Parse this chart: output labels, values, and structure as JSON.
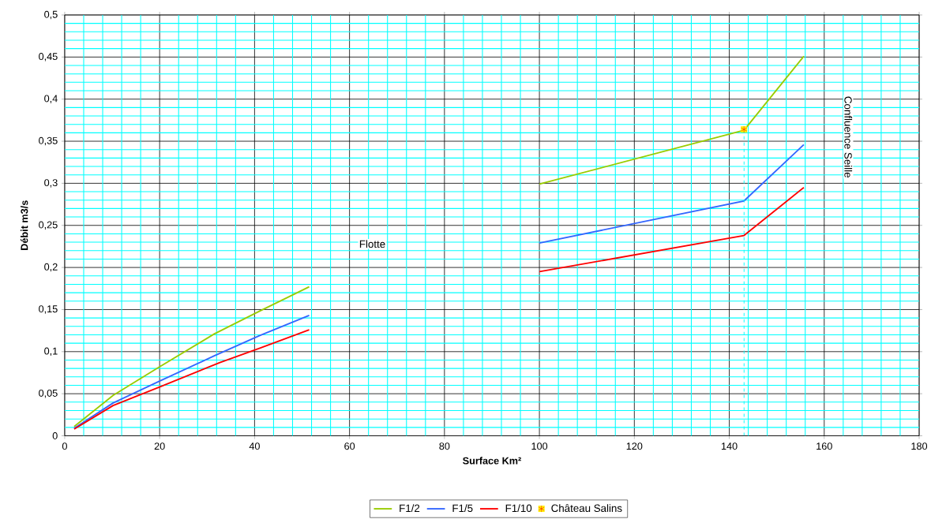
{
  "chart_data": {
    "type": "line",
    "xlabel": "Surface Km²",
    "ylabel": "Débit m3/s",
    "xlim": [
      0,
      180
    ],
    "ylim": [
      0,
      0.5
    ],
    "xticks": [
      0,
      {
        "value": 4,
        "label": null
      },
      {
        "value": 8,
        "label": null
      },
      {
        "value": 12,
        "label": null
      },
      {
        "value": 16,
        "label": null
      },
      20,
      {
        "value": 24,
        "label": null
      },
      {
        "value": 28,
        "label": null
      },
      {
        "value": 32,
        "label": null
      },
      {
        "value": 36,
        "label": null
      },
      40,
      {
        "value": 44,
        "label": null
      },
      {
        "value": 48,
        "label": null
      },
      {
        "value": 52,
        "label": null
      },
      {
        "value": 56,
        "label": null
      },
      60,
      {
        "value": 64,
        "label": null
      },
      {
        "value": 68,
        "label": null
      },
      {
        "value": 72,
        "label": null
      },
      {
        "value": 76,
        "label": null
      },
      80,
      {
        "value": 84,
        "label": null
      },
      {
        "value": 88,
        "label": null
      },
      {
        "value": 92,
        "label": null
      },
      {
        "value": 96,
        "label": null
      },
      100,
      {
        "value": 104,
        "label": null
      },
      {
        "value": 108,
        "label": null
      },
      {
        "value": 112,
        "label": null
      },
      {
        "value": 116,
        "label": null
      },
      120,
      {
        "value": 124,
        "label": null
      },
      {
        "value": 128,
        "label": null
      },
      {
        "value": 132,
        "label": null
      },
      {
        "value": 136,
        "label": null
      },
      140,
      {
        "value": 144,
        "label": null
      },
      {
        "value": 148,
        "label": null
      },
      {
        "value": 152,
        "label": null
      },
      {
        "value": 156,
        "label": null
      },
      160,
      {
        "value": 164,
        "label": null
      },
      {
        "value": 168,
        "label": null
      },
      {
        "value": 172,
        "label": null
      },
      {
        "value": 176,
        "label": null
      },
      180
    ],
    "yticks": [
      0,
      {
        "value": 0.01,
        "label": null
      },
      {
        "value": 0.02,
        "label": null
      },
      {
        "value": 0.03,
        "label": null
      },
      {
        "value": 0.04,
        "label": null
      },
      {
        "value": 0.05,
        "label": "0,05"
      },
      {
        "value": 0.06,
        "label": null
      },
      {
        "value": 0.07,
        "label": null
      },
      {
        "value": 0.08,
        "label": null
      },
      {
        "value": 0.09,
        "label": null
      },
      {
        "value": 0.1,
        "label": "0,1"
      },
      {
        "value": 0.11,
        "label": null
      },
      {
        "value": 0.12,
        "label": null
      },
      {
        "value": 0.13,
        "label": null
      },
      {
        "value": 0.14,
        "label": null
      },
      {
        "value": 0.15,
        "label": "0,15"
      },
      {
        "value": 0.16,
        "label": null
      },
      {
        "value": 0.17,
        "label": null
      },
      {
        "value": 0.18,
        "label": null
      },
      {
        "value": 0.19,
        "label": null
      },
      {
        "value": 0.2,
        "label": "0,2"
      },
      {
        "value": 0.21,
        "label": null
      },
      {
        "value": 0.22,
        "label": null
      },
      {
        "value": 0.23,
        "label": null
      },
      {
        "value": 0.24,
        "label": null
      },
      {
        "value": 0.25,
        "label": "0,25"
      },
      {
        "value": 0.26,
        "label": null
      },
      {
        "value": 0.27,
        "label": null
      },
      {
        "value": 0.28,
        "label": null
      },
      {
        "value": 0.29,
        "label": null
      },
      {
        "value": 0.3,
        "label": "0,3"
      },
      {
        "value": 0.31,
        "label": null
      },
      {
        "value": 0.32,
        "label": null
      },
      {
        "value": 0.33,
        "label": null
      },
      {
        "value": 0.34,
        "label": null
      },
      {
        "value": 0.35,
        "label": "0,35"
      },
      {
        "value": 0.36,
        "label": null
      },
      {
        "value": 0.37,
        "label": null
      },
      {
        "value": 0.38,
        "label": null
      },
      {
        "value": 0.39,
        "label": null
      },
      {
        "value": 0.4,
        "label": "0,4"
      },
      {
        "value": 0.41,
        "label": null
      },
      {
        "value": 0.42,
        "label": null
      },
      {
        "value": 0.43,
        "label": null
      },
      {
        "value": 0.44,
        "label": null
      },
      {
        "value": 0.45,
        "label": "0,45"
      },
      {
        "value": 0.46,
        "label": null
      },
      {
        "value": 0.47,
        "label": null
      },
      {
        "value": 0.48,
        "label": null
      },
      {
        "value": 0.49,
        "label": null
      },
      {
        "value": 0.5,
        "label": "0,5"
      }
    ],
    "grid": true,
    "legend": "bottom",
    "line_style": "solid",
    "series": [
      {
        "name": "F1/2",
        "color": "#99cc00",
        "x": [
          2,
          10.2,
          20,
          31.5,
          41,
          51.5,
          null,
          100,
          143.1,
          155.7
        ],
        "values": [
          0.011,
          0.048,
          0.082,
          0.121,
          0.148,
          0.177,
          null,
          0.299,
          0.363,
          0.451
        ]
      },
      {
        "name": "F1/5",
        "color": "#3366ff",
        "x": [
          2,
          10.2,
          20,
          31.5,
          41,
          51.5,
          null,
          100,
          143.1,
          155.7
        ],
        "values": [
          0.009,
          0.039,
          0.065,
          0.095,
          0.119,
          0.143,
          null,
          0.229,
          0.279,
          0.346
        ]
      },
      {
        "name": "F1/10",
        "color": "#ff0000",
        "x": [
          2,
          10.2,
          20,
          32.7,
          41,
          51.5,
          null,
          100,
          143.1,
          155.7
        ],
        "values": [
          0.008,
          0.036,
          0.058,
          0.087,
          0.104,
          0.126,
          null,
          0.195,
          0.238,
          0.295
        ]
      },
      {
        "name": "Château Salins",
        "type": "scatter",
        "marker": "cross",
        "color": "#ff0000",
        "x": [
          143.1
        ],
        "values": [
          0.364
        ]
      }
    ],
    "ref_lines": [
      {
        "axis": "x",
        "value": 143.1,
        "color": "#00ffff",
        "line_style": "dashed"
      }
    ],
    "annotations": [
      "Flotte",
      "Confluence Seille"
    ]
  }
}
